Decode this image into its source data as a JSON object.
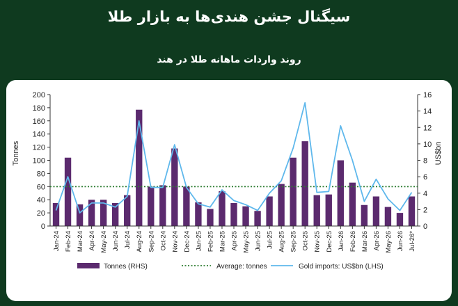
{
  "header": {
    "title": "سیگنال جشن هندی‌ها به بازار طلا",
    "subtitle": "روند واردات ماهانه طلا در هند"
  },
  "chart_data": {
    "type": "bar",
    "categories": [
      "Jan-24",
      "Feb-24",
      "Mar-24",
      "Apr-24",
      "May-24",
      "Jun-24",
      "Jul-24",
      "Aug-24",
      "Sep-24",
      "Oct-24",
      "Nov-24",
      "Dec-24",
      "Jan-25",
      "Feb-25",
      "Mar-25",
      "Apr-25",
      "May-25",
      "Jun-25",
      "Jul-25",
      "Aug-25",
      "Sep-25",
      "Oct-25",
      "Nov-25",
      "Dec-25",
      "Jan-26",
      "Feb-26",
      "Mar-26",
      "Apr-26",
      "May-26",
      "Jun-26",
      "Jul-26*"
    ],
    "x_tick_labels": [
      "Jan-24",
      "Feb-24",
      "Mar-24",
      "Apr-24",
      "May-24",
      "Jun-24",
      "Jul-24",
      "Aug-24",
      "Sep-24",
      "Oct-24",
      "Nov-24",
      "Dec-24",
      "Jan-25",
      "Feb-25",
      "Mar-25",
      "Apr-25",
      "May-25",
      "Jun-25",
      "Jul-25",
      "Aug-25",
      "Sep-25",
      "Oct-25",
      "Nov-25",
      "Dec-25",
      "Jan-26",
      "Feb-26",
      "Mar-26",
      "Apr-26",
      "May-26",
      "Jun-26",
      "Jul-26*"
    ],
    "series": [
      {
        "name": "Tonnes (RHS)",
        "kind": "bar",
        "axis": "left",
        "color": "#5b2a6e",
        "values": [
          35,
          104,
          33,
          40,
          40,
          35,
          47,
          177,
          60,
          62,
          118,
          60,
          36,
          26,
          53,
          35,
          30,
          23,
          45,
          64,
          104,
          129,
          47,
          48,
          100,
          66,
          32,
          45,
          29,
          20,
          45
        ]
      },
      {
        "name": "Average: tonnes",
        "kind": "hline",
        "axis": "left",
        "color": "#2e7d32",
        "value": 60
      },
      {
        "name": "Gold imports: US$bn (LHS)",
        "kind": "line",
        "axis": "right",
        "color": "#5fb8ec",
        "values": [
          1.9,
          6.0,
          1.6,
          2.8,
          2.8,
          2.3,
          3.6,
          12.8,
          4.7,
          4.7,
          9.9,
          4.7,
          2.7,
          2.3,
          4.4,
          3.1,
          2.6,
          1.9,
          4.0,
          5.5,
          9.5,
          15.0,
          4.1,
          4.2,
          12.2,
          8.0,
          3.0,
          5.7,
          3.3,
          1.9,
          4.1
        ]
      }
    ],
    "y_left": {
      "label": "Tonnes",
      "range": [
        0,
        200
      ],
      "ticks": [
        "0",
        "20",
        "40",
        "60",
        "80",
        "100",
        "120",
        "140",
        "160",
        "180",
        "200"
      ]
    },
    "y_right": {
      "label": "US$bn",
      "range": [
        0,
        16
      ],
      "ticks": [
        "0",
        "2",
        "4",
        "6",
        "8",
        "10",
        "12",
        "14",
        "16"
      ]
    },
    "legend_position": "bottom",
    "grid": false
  }
}
